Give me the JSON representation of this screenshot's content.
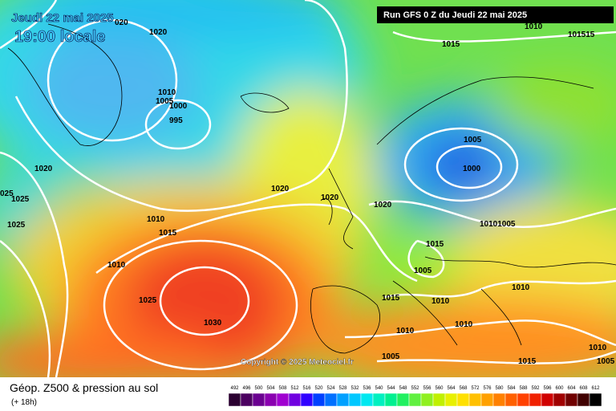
{
  "header": {
    "date": "Jeudi 22 mai 2025",
    "time": "19:00 locale",
    "run": "Run GFS 0 Z du Jeudi 22 mai 2025"
  },
  "isobar_labels": [
    "020",
    "1020",
    "1010",
    "1015",
    "101515",
    "1010",
    "1005",
    "1000",
    "995",
    "1005",
    "1000",
    "1020",
    "025",
    "1025",
    "1025",
    "1020",
    "1020",
    "1020",
    "1010",
    "1015",
    "10101005",
    "1015",
    "1010",
    "1005",
    "1010",
    "1015",
    "1010",
    "1025",
    "1030",
    "1010",
    "1010",
    "1005",
    "1015",
    "1010",
    "1005"
  ],
  "copyright": "Copyright © 2025 Meteociel.fr",
  "footer": {
    "title": "Géop. Z500 & pression au sol",
    "lead": "(+ 18h)"
  },
  "scale": {
    "values": [
      492,
      496,
      500,
      504,
      508,
      512,
      516,
      520,
      524,
      528,
      532,
      536,
      540,
      544,
      548,
      552,
      556,
      560,
      564,
      568,
      572,
      576,
      580,
      584,
      588,
      592,
      596,
      600,
      604,
      608,
      612
    ],
    "colors": [
      "#2a0030",
      "#4b0060",
      "#6a0090",
      "#8a00b0",
      "#a000d0",
      "#7000e0",
      "#3000ff",
      "#0040ff",
      "#0070ff",
      "#00a0ff",
      "#00c8ff",
      "#00e8f0",
      "#00f0c0",
      "#00f090",
      "#20f060",
      "#60f040",
      "#90f020",
      "#c0f000",
      "#e8f000",
      "#ffe000",
      "#ffc000",
      "#ffa000",
      "#ff8000",
      "#ff6000",
      "#ff4000",
      "#f02000",
      "#d00000",
      "#a00000",
      "#700000",
      "#400000",
      "#000000"
    ]
  }
}
